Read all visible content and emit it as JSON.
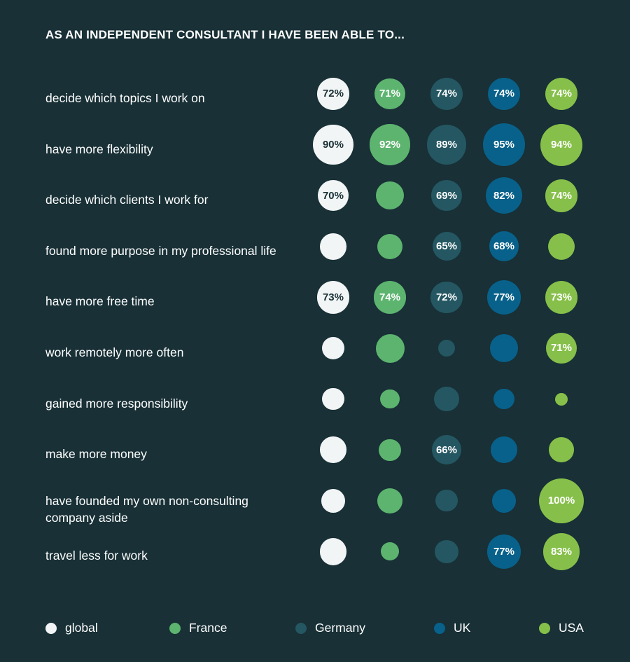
{
  "chart_data": {
    "type": "bubble-grid",
    "title": "AS AN INDEPENDENT CONSULTANT I HAVE BEEN ABLE TO...",
    "unit": "%",
    "series": [
      {
        "name": "global",
        "color": "#f2f5f5",
        "label_color": "#183036"
      },
      {
        "name": "France",
        "color": "#5db46f",
        "label_color": "#ffffff"
      },
      {
        "name": "Germany",
        "color": "#245762",
        "label_color": "#ffffff"
      },
      {
        "name": "UK",
        "color": "#08618a",
        "label_color": "#ffffff"
      },
      {
        "name": "USA",
        "color": "#86c04a",
        "label_color": "#ffffff"
      }
    ],
    "rows": [
      {
        "label": "decide which topics I work on",
        "values": [
          72,
          71,
          74,
          74,
          74
        ],
        "labels": [
          "72%",
          "71%",
          "74%",
          "74%",
          "74%"
        ]
      },
      {
        "label": "have more flexibility",
        "values": [
          90,
          92,
          89,
          95,
          94
        ],
        "labels": [
          "90%",
          "92%",
          "89%",
          "95%",
          "94%"
        ]
      },
      {
        "label": "decide which clients I work for",
        "values": [
          70,
          64,
          69,
          82,
          74
        ],
        "labels": [
          "70%",
          null,
          "69%",
          "82%",
          "74%"
        ]
      },
      {
        "label": "found more purpose in my professional life",
        "values": [
          60,
          58,
          65,
          68,
          61
        ],
        "labels": [
          null,
          null,
          "65%",
          "68%",
          null
        ]
      },
      {
        "label": "have more free time",
        "values": [
          73,
          74,
          72,
          77,
          73
        ],
        "labels": [
          "73%",
          "74%",
          "72%",
          "77%",
          "73%"
        ]
      },
      {
        "label": "work remotely more often",
        "values": [
          52,
          65,
          40,
          63,
          71
        ],
        "labels": [
          null,
          null,
          null,
          null,
          "71%"
        ]
      },
      {
        "label": "gained more responsibility",
        "values": [
          50,
          44,
          56,
          47,
          30
        ],
        "labels": [
          null,
          null,
          null,
          null,
          null
        ]
      },
      {
        "label": "make more money",
        "values": [
          60,
          50,
          66,
          60,
          57
        ],
        "labels": [
          null,
          null,
          "66%",
          null,
          null
        ]
      },
      {
        "label": "have founded my own non-consulting company aside",
        "values": [
          54,
          58,
          50,
          54,
          100
        ],
        "labels": [
          null,
          null,
          null,
          null,
          "100%"
        ]
      },
      {
        "label": "travel less for work",
        "values": [
          61,
          42,
          54,
          77,
          83
        ],
        "labels": [
          null,
          null,
          null,
          "77%",
          "83%"
        ]
      }
    ]
  }
}
